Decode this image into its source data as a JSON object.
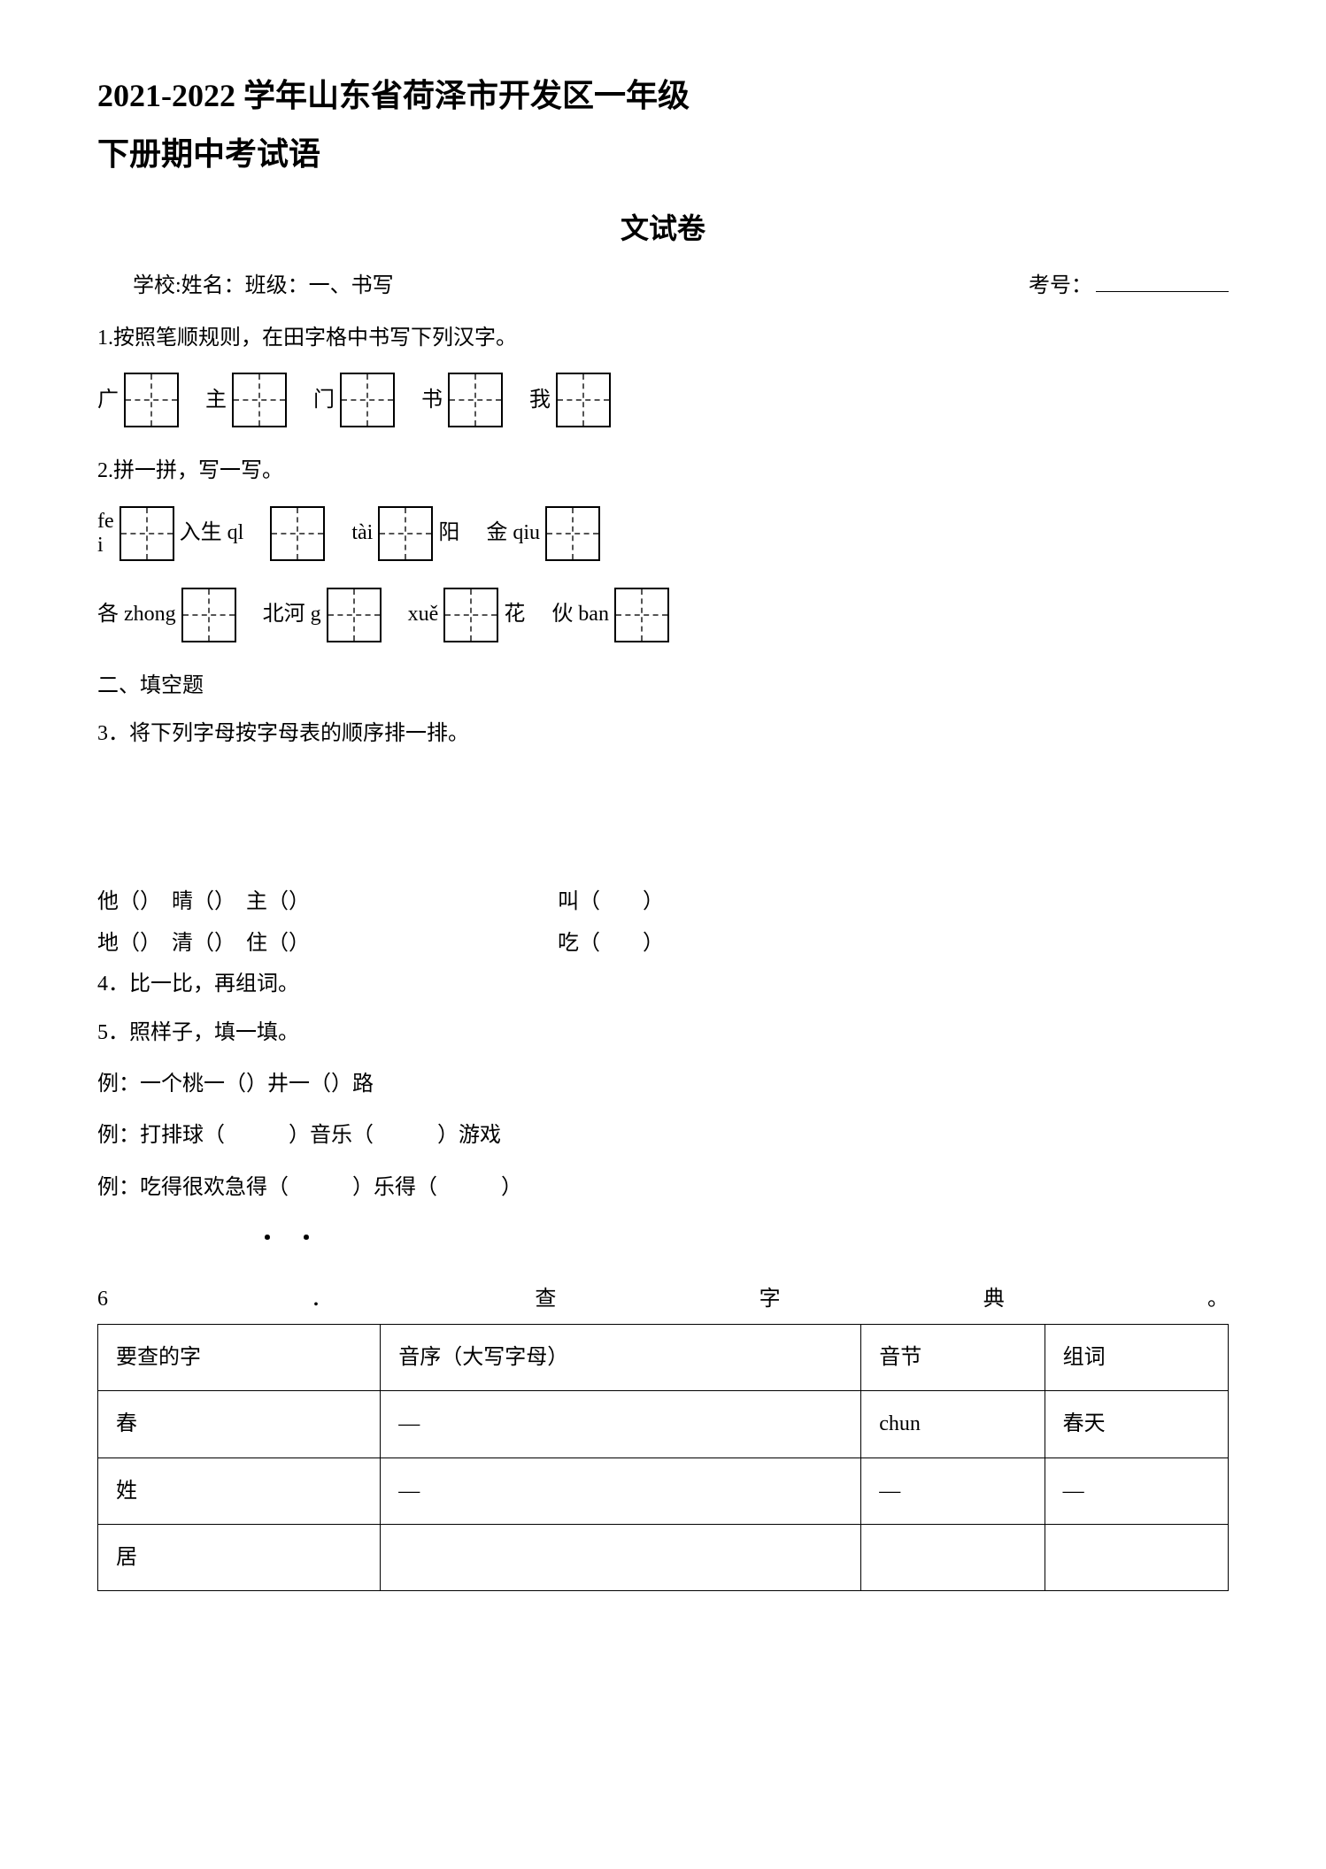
{
  "title_line1": "2021-2022 学年山东省荷泽市开发区一年级",
  "title_line2": "下册期中考试语",
  "subtitle": "文试卷",
  "info_left": "学校:姓名：班级：一、书写",
  "info_right_label": "考号：",
  "q1": {
    "text": "1.按照笔顺规则，在田字格中书写下列汉字。",
    "chars": [
      "广",
      "主",
      "门",
      "书",
      "我"
    ]
  },
  "q2": {
    "text": "2.拼一拼，写一写。",
    "row1": [
      {
        "pre": "fe",
        "pre2": "i",
        "post": "入生 ql"
      },
      {
        "pre": "",
        "post": ""
      },
      {
        "pre": "tài",
        "post": "阳"
      },
      {
        "pre": "金 qiu",
        "post": ""
      }
    ],
    "row2": [
      {
        "pre": "各 zhong",
        "post": ""
      },
      {
        "pre": "北河 g",
        "post": ""
      },
      {
        "pre": "xuě",
        "post": "花"
      },
      {
        "pre": "伙 ban",
        "post": ""
      }
    ]
  },
  "section2": "二、填空题",
  "q3": "3．将下列字母按字母表的顺序排一排。",
  "q4": {
    "line1_left": "他（）　晴（）　主（）",
    "line1_right": "叫（　　）",
    "line2_left": "地（）　清（）　住（）",
    "line2_right": "吃（　　）",
    "text": "4．比一比，再组词。"
  },
  "q5": {
    "text": "5．照样子，填一填。",
    "ex1": "例：一个桃一（）井一（）路",
    "ex2": "例：打排球（　　　）音乐（　　　）游戏",
    "ex3": "例：吃得很欢急得（　　　）乐得（　　　）",
    "dots": "・・"
  },
  "q6": {
    "label_num": "6",
    "label_dot": "．",
    "label_cha": "查",
    "label_zi": "字",
    "label_dian": "典",
    "label_period": "。",
    "headers": [
      "要查的字",
      "音序（大写字母）",
      "音节",
      "组词"
    ],
    "rows": [
      [
        "春",
        "—",
        "chun",
        "春天"
      ],
      [
        "姓",
        "—",
        "—",
        "—"
      ],
      [
        "居",
        "",
        "",
        ""
      ]
    ]
  }
}
